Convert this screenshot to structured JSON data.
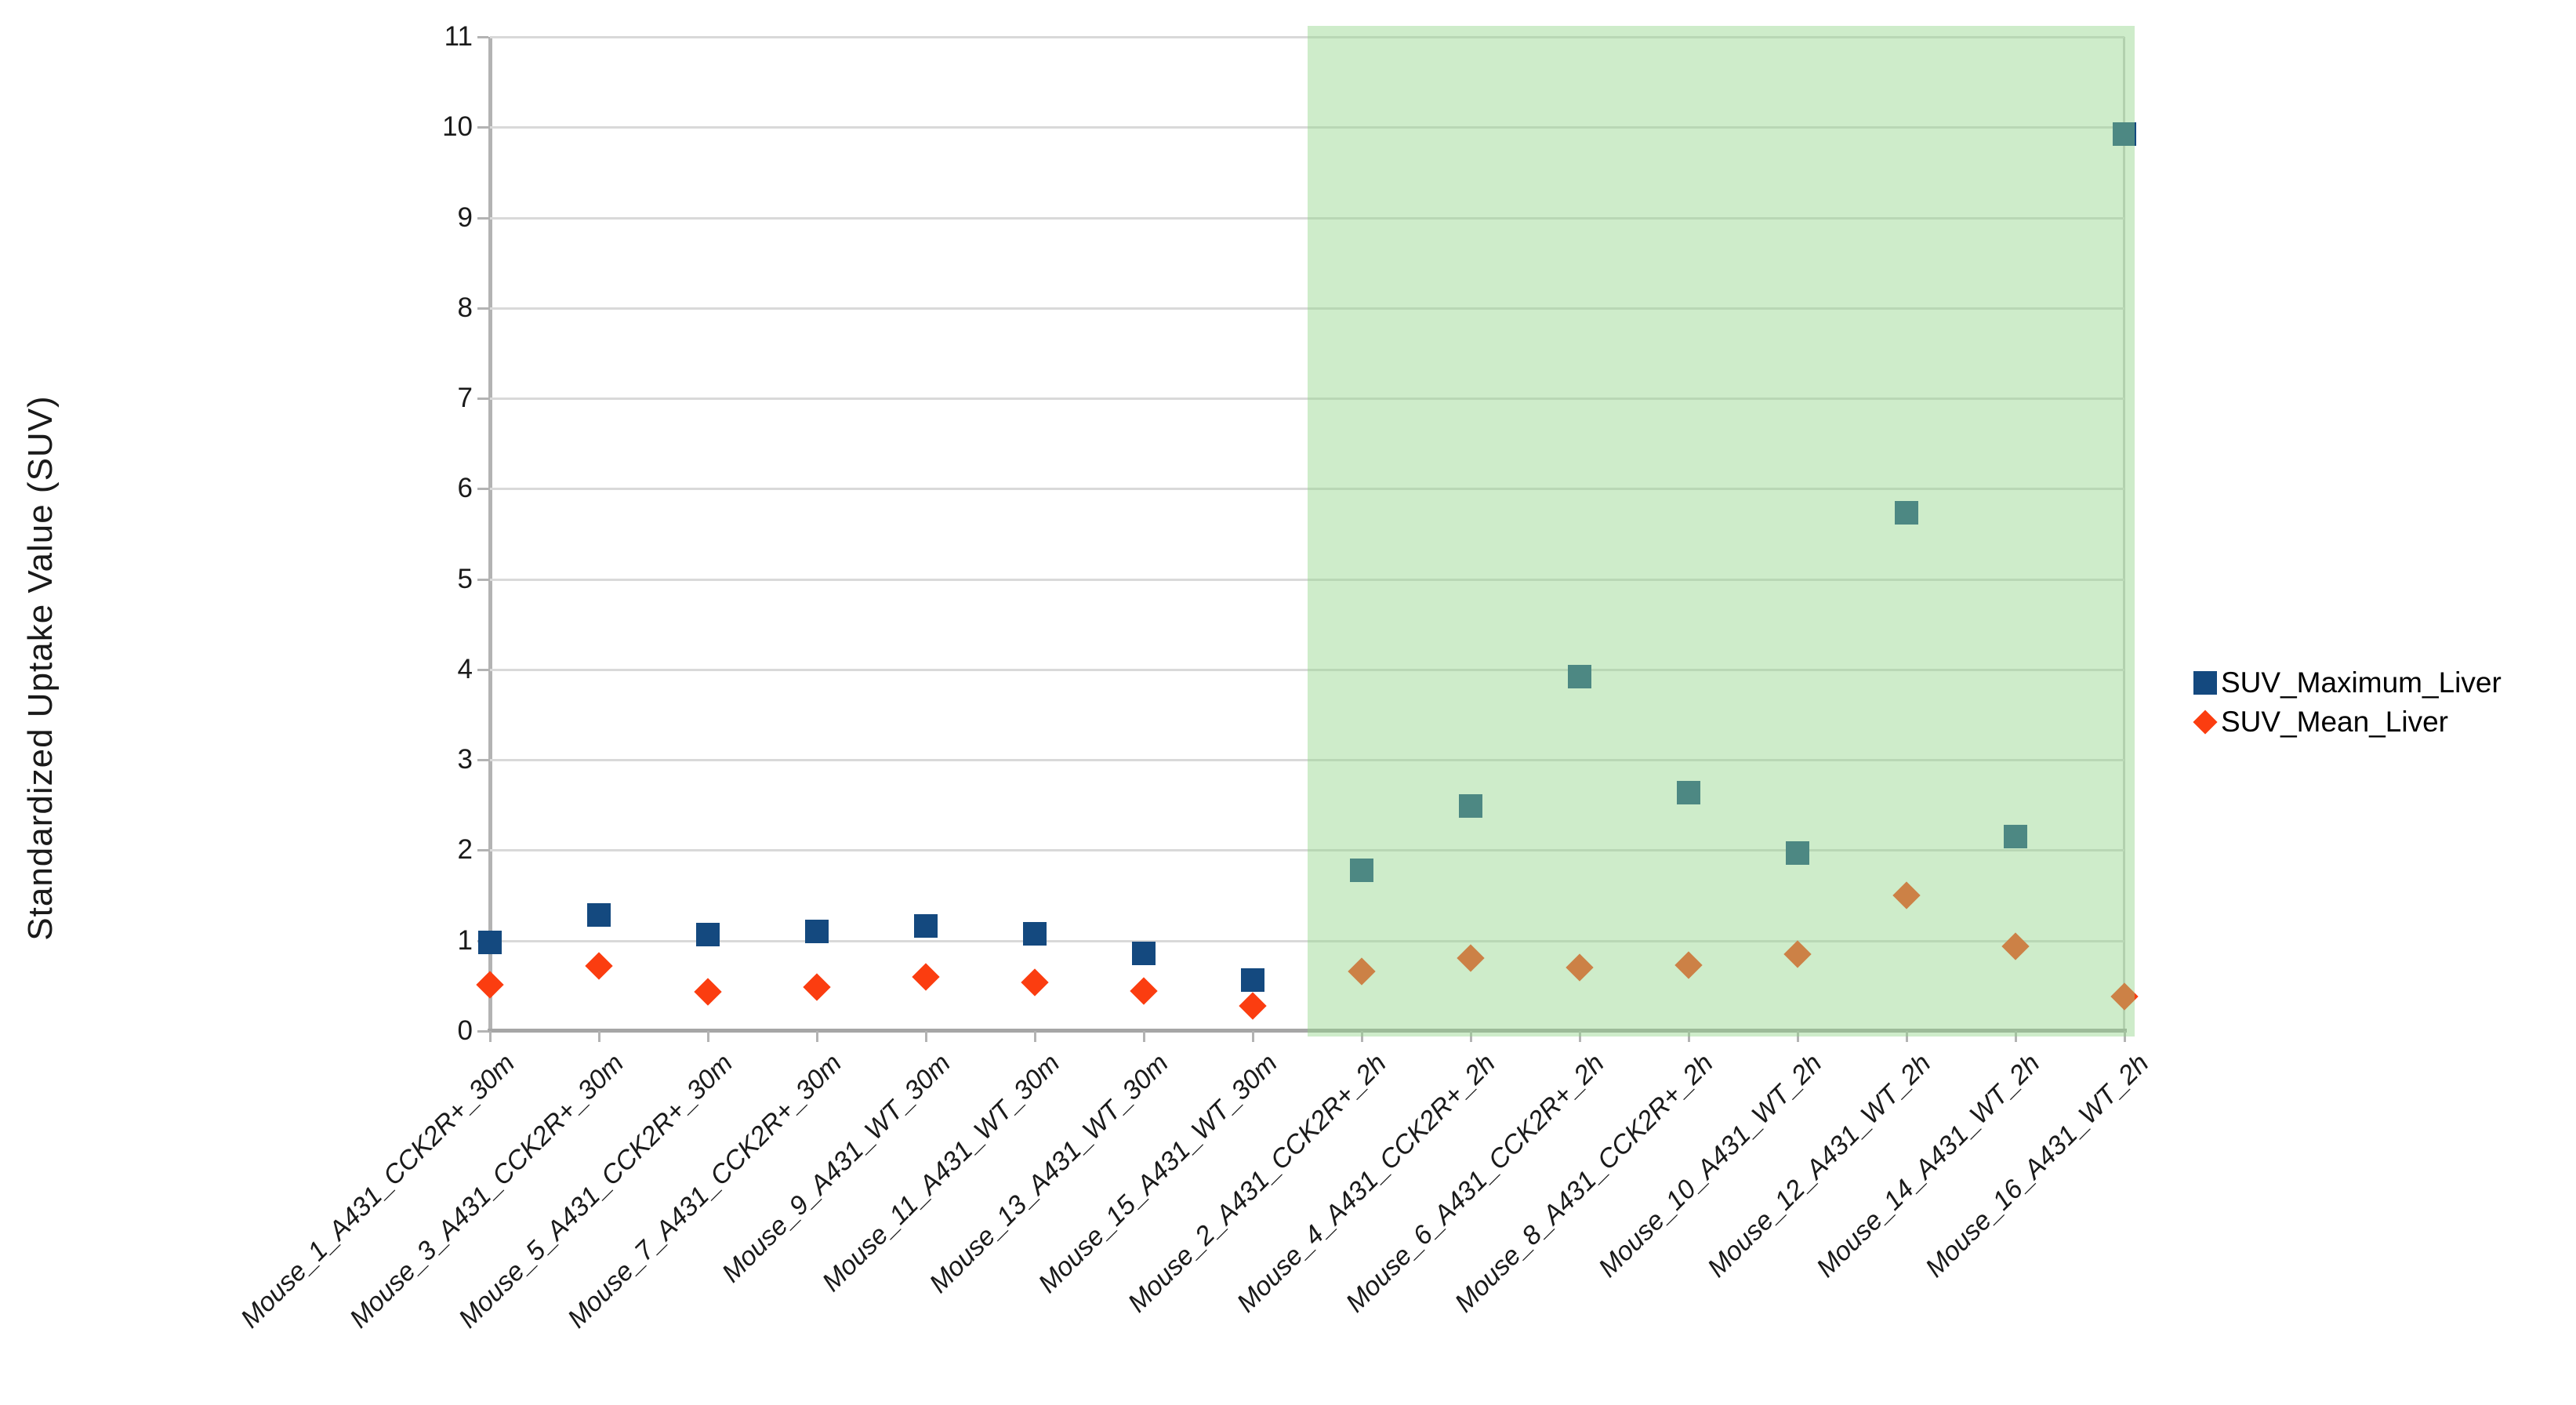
{
  "chart_data": {
    "type": "scatter",
    "title": "",
    "xlabel": "",
    "ylabel": "Standardized Uptake Value (SUV)",
    "ylim": [
      0,
      11
    ],
    "yticks": [
      0,
      1,
      2,
      3,
      4,
      5,
      6,
      7,
      8,
      9,
      10,
      11
    ],
    "grid": true,
    "legend_position": "right",
    "categories": [
      "Mouse_1_A431_CCK2R+_30m",
      "Mouse_3_A431_CCK2R+_30m",
      "Mouse_5_A431_CCK2R+_30m",
      "Mouse_7_A431_CCK2R+_30m",
      "Mouse_9_A431_WT_30m",
      "Mouse_11_A431_WT_30m",
      "Mouse_13_A431_WT_30m",
      "Mouse_15_A431_WT_30m",
      "Mouse_2_A431_CCK2R+_2h",
      "Mouse_4_A431_CCK2R+_2h",
      "Mouse_6_A431_CCK2R+_2h",
      "Mouse_8_A431_CCK2R+_2h",
      "Mouse_10_A431_WT_2h",
      "Mouse_12_A431_WT_2h",
      "Mouse_14_A431_WT_2h",
      "Mouse_16_A431_WT_2h"
    ],
    "series": [
      {
        "name": "SUV_Maximum_Liver",
        "marker": "square",
        "color": "#14497f",
        "values": [
          0.98,
          1.28,
          1.07,
          1.1,
          1.16,
          1.08,
          0.86,
          0.56,
          1.78,
          2.49,
          3.92,
          2.64,
          1.97,
          5.73,
          2.15,
          9.92
        ]
      },
      {
        "name": "SUV_Mean_Liver",
        "marker": "diamond",
        "color": "#fb3d10",
        "values": [
          0.51,
          0.72,
          0.43,
          0.49,
          0.6,
          0.54,
          0.44,
          0.28,
          0.66,
          0.81,
          0.7,
          0.73,
          0.85,
          1.5,
          0.94,
          0.38
        ]
      }
    ],
    "highlight_region": {
      "from_category": "Mouse_2_A431_CCK2R+_2h",
      "to_category": "Mouse_16_A431_WT_2h",
      "color": "rgba(147,213,137,0.45)"
    },
    "colors": {
      "gridline": "#d9d9d9",
      "axis": "#a6a6a6",
      "plot_background": "#ffffff"
    }
  }
}
